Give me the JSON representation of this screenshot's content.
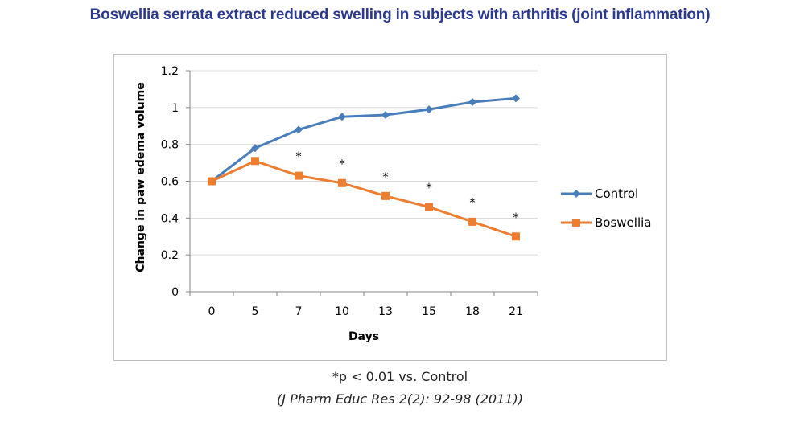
{
  "page": {
    "title": "Boswellia serrata extract reduced swelling in subjects with arthritis (joint inflammation)",
    "footnote": "*p < 0.01 vs. Control",
    "citation": "(J Pharm Educ Res 2(2): 92-98 (2011))"
  },
  "chart_data": {
    "type": "line",
    "title": "",
    "xlabel": "Days",
    "ylabel": "Change in paw edema volume",
    "categories": [
      "0",
      "5",
      "7",
      "10",
      "13",
      "15",
      "18",
      "21"
    ],
    "ylim": [
      0,
      1.2
    ],
    "yticks": [
      "0",
      "0.2",
      "0.4",
      "0.6",
      "0.8",
      "1",
      "1.2"
    ],
    "grid": true,
    "legend_position": "right",
    "significance_marker": "*",
    "significant_categories": [
      "7",
      "10",
      "13",
      "15",
      "18",
      "21"
    ],
    "series": [
      {
        "name": "Control",
        "color": "#4a7ebb",
        "marker": "diamond",
        "values": [
          0.6,
          0.78,
          0.88,
          0.95,
          0.96,
          0.99,
          1.03,
          1.05
        ]
      },
      {
        "name": "Boswellia",
        "color": "#ed7d31",
        "marker": "square",
        "values": [
          0.6,
          0.71,
          0.63,
          0.59,
          0.52,
          0.46,
          0.38,
          0.3
        ]
      }
    ]
  }
}
